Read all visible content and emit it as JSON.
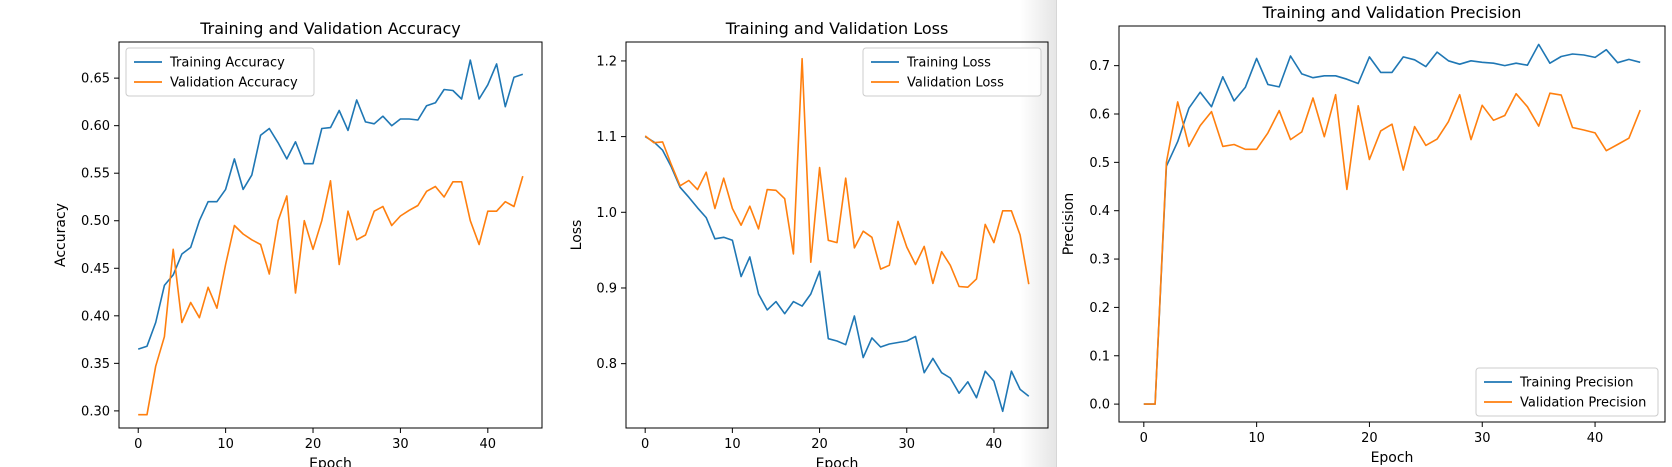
{
  "chart_data": [
    {
      "type": "line",
      "title": "Training and Validation Accuracy",
      "xlabel": "Epoch",
      "ylabel": "Accuracy",
      "xlim": [
        -2.2,
        46.2
      ],
      "ylim": [
        0.282,
        0.688
      ],
      "xticks": [
        0,
        10,
        20,
        30,
        40
      ],
      "yticks": [
        0.3,
        0.35,
        0.4,
        0.45,
        0.5,
        0.55,
        0.6,
        0.65
      ],
      "ytick_labels": [
        "0.30",
        "0.35",
        "0.40",
        "0.45",
        "0.50",
        "0.55",
        "0.60",
        "0.65"
      ],
      "legend_position": "upper left",
      "x": [
        0,
        1,
        2,
        3,
        4,
        5,
        6,
        7,
        8,
        9,
        10,
        11,
        12,
        13,
        14,
        15,
        16,
        17,
        18,
        19,
        20,
        21,
        22,
        23,
        24,
        25,
        26,
        27,
        28,
        29,
        30,
        31,
        32,
        33,
        34,
        35,
        36,
        37,
        38,
        39,
        40,
        41,
        42,
        43,
        44
      ],
      "series": [
        {
          "name": "Training Accuracy",
          "color": "#1f77b4",
          "values": [
            0.365,
            0.368,
            0.393,
            0.432,
            0.443,
            0.465,
            0.472,
            0.5,
            0.52,
            0.52,
            0.533,
            0.565,
            0.533,
            0.548,
            0.59,
            0.597,
            0.582,
            0.565,
            0.583,
            0.56,
            0.56,
            0.597,
            0.598,
            0.616,
            0.595,
            0.627,
            0.604,
            0.602,
            0.61,
            0.6,
            0.607,
            0.607,
            0.606,
            0.621,
            0.624,
            0.638,
            0.637,
            0.628,
            0.669,
            0.628,
            0.643,
            0.665,
            0.62,
            0.651,
            0.654
          ]
        },
        {
          "name": "Validation Accuracy",
          "color": "#ff7f0e",
          "values": [
            0.296,
            0.296,
            0.347,
            0.378,
            0.47,
            0.393,
            0.414,
            0.398,
            0.43,
            0.408,
            0.454,
            0.495,
            0.486,
            0.48,
            0.475,
            0.444,
            0.5,
            0.526,
            0.424,
            0.5,
            0.47,
            0.5,
            0.542,
            0.454,
            0.51,
            0.48,
            0.485,
            0.51,
            0.515,
            0.495,
            0.505,
            0.511,
            0.516,
            0.531,
            0.536,
            0.525,
            0.541,
            0.541,
            0.5,
            0.475,
            0.51,
            0.51,
            0.52,
            0.515,
            0.547
          ]
        }
      ]
    },
    {
      "type": "line",
      "title": "Training and Validation Loss",
      "xlabel": "Epoch",
      "ylabel": "Loss",
      "xlim": [
        -2.2,
        46.2
      ],
      "ylim": [
        0.715,
        1.225
      ],
      "xticks": [
        0,
        10,
        20,
        30,
        40
      ],
      "yticks": [
        0.8,
        0.9,
        1.0,
        1.1,
        1.2
      ],
      "ytick_labels": [
        "0.8",
        "0.9",
        "1.0",
        "1.1",
        "1.2"
      ],
      "legend_position": "upper right",
      "x": [
        0,
        1,
        2,
        3,
        4,
        5,
        6,
        7,
        8,
        9,
        10,
        11,
        12,
        13,
        14,
        15,
        16,
        17,
        18,
        19,
        20,
        21,
        22,
        23,
        24,
        25,
        26,
        27,
        28,
        29,
        30,
        31,
        32,
        33,
        34,
        35,
        36,
        37,
        38,
        39,
        40,
        41,
        42,
        43,
        44
      ],
      "series": [
        {
          "name": "Training Loss",
          "color": "#1f77b4",
          "values": [
            1.1,
            1.093,
            1.082,
            1.06,
            1.033,
            1.02,
            1.006,
            0.993,
            0.965,
            0.967,
            0.963,
            0.915,
            0.941,
            0.892,
            0.871,
            0.882,
            0.866,
            0.882,
            0.876,
            0.892,
            0.922,
            0.833,
            0.83,
            0.825,
            0.863,
            0.808,
            0.834,
            0.822,
            0.826,
            0.828,
            0.83,
            0.836,
            0.788,
            0.807,
            0.788,
            0.781,
            0.761,
            0.776,
            0.755,
            0.79,
            0.777,
            0.737,
            0.79,
            0.766,
            0.757
          ]
        },
        {
          "name": "Validation Loss",
          "color": "#ff7f0e",
          "values": [
            1.101,
            1.092,
            1.093,
            1.063,
            1.035,
            1.042,
            1.03,
            1.053,
            1.005,
            1.045,
            1.005,
            0.983,
            1.008,
            0.978,
            1.03,
            1.029,
            1.018,
            0.945,
            1.203,
            0.934,
            1.059,
            0.963,
            0.96,
            1.045,
            0.953,
            0.975,
            0.967,
            0.925,
            0.93,
            0.988,
            0.954,
            0.931,
            0.955,
            0.906,
            0.948,
            0.93,
            0.902,
            0.901,
            0.912,
            0.984,
            0.96,
            1.002,
            1.002,
            0.97,
            0.905
          ]
        }
      ]
    },
    {
      "type": "line",
      "title": "Training and Validation Precision",
      "xlabel": "Epoch",
      "ylabel": "Precision",
      "xlim": [
        -2.2,
        46.2
      ],
      "ylim": [
        -0.037,
        0.782
      ],
      "xticks": [
        0,
        10,
        20,
        30,
        40
      ],
      "yticks": [
        0.0,
        0.1,
        0.2,
        0.3,
        0.4,
        0.5,
        0.6,
        0.7
      ],
      "ytick_labels": [
        "0.0",
        "0.1",
        "0.2",
        "0.3",
        "0.4",
        "0.5",
        "0.6",
        "0.7"
      ],
      "legend_position": "lower right",
      "x": [
        0,
        1,
        2,
        3,
        4,
        5,
        6,
        7,
        8,
        9,
        10,
        11,
        12,
        13,
        14,
        15,
        16,
        17,
        18,
        19,
        20,
        21,
        22,
        23,
        24,
        25,
        26,
        27,
        28,
        29,
        30,
        31,
        32,
        33,
        34,
        35,
        36,
        37,
        38,
        39,
        40,
        41,
        42,
        43,
        44
      ],
      "series": [
        {
          "name": "Training Precision",
          "color": "#1f77b4",
          "values": [
            0.0,
            0.0,
            0.492,
            0.543,
            0.612,
            0.645,
            0.615,
            0.677,
            0.627,
            0.655,
            0.715,
            0.661,
            0.656,
            0.72,
            0.683,
            0.675,
            0.679,
            0.679,
            0.672,
            0.663,
            0.718,
            0.686,
            0.686,
            0.718,
            0.712,
            0.698,
            0.728,
            0.71,
            0.703,
            0.71,
            0.707,
            0.705,
            0.7,
            0.705,
            0.701,
            0.744,
            0.705,
            0.719,
            0.724,
            0.722,
            0.717,
            0.733,
            0.706,
            0.713,
            0.707
          ]
        },
        {
          "name": "Validation Precision",
          "color": "#ff7f0e",
          "values": [
            0.0,
            0.0,
            0.5,
            0.625,
            0.533,
            0.576,
            0.605,
            0.533,
            0.537,
            0.527,
            0.527,
            0.561,
            0.607,
            0.547,
            0.563,
            0.633,
            0.553,
            0.64,
            0.444,
            0.617,
            0.506,
            0.565,
            0.579,
            0.484,
            0.574,
            0.535,
            0.548,
            0.584,
            0.64,
            0.547,
            0.618,
            0.587,
            0.597,
            0.642,
            0.615,
            0.575,
            0.643,
            0.639,
            0.572,
            0.567,
            0.561,
            0.524,
            0.537,
            0.55,
            0.608
          ]
        }
      ]
    }
  ]
}
